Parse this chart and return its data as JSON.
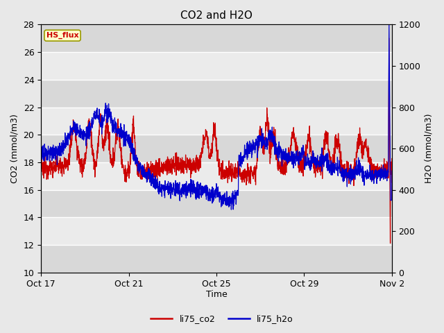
{
  "title": "CO2 and H2O",
  "xlabel": "Time",
  "ylabel_left": "CO2 (mmol/m3)",
  "ylabel_right": "H2O (mmol/m3)",
  "ylim_left": [
    10,
    28
  ],
  "ylim_right": [
    0,
    1200
  ],
  "yticks_left": [
    10,
    12,
    14,
    16,
    18,
    20,
    22,
    24,
    26,
    28
  ],
  "yticks_right": [
    0,
    200,
    400,
    600,
    800,
    1000,
    1200
  ],
  "xtick_labels": [
    "Oct 17",
    "Oct 21",
    "Oct 25",
    "Oct 29",
    "Nov 2"
  ],
  "xtick_positions": [
    0,
    4,
    8,
    12,
    16
  ],
  "xlim": [
    0,
    16
  ],
  "color_co2": "#cc0000",
  "color_h2o": "#0000cc",
  "legend_label_co2": "li75_co2",
  "legend_label_h2o": "li75_h2o",
  "tag_text": "HS_flux",
  "tag_bg": "#ffffcc",
  "tag_border": "#999900",
  "tag_text_color": "#cc0000",
  "fig_bg_color": "#e8e8e8",
  "plot_bg_color": "#f0f0f0",
  "band_light": "#ebebeb",
  "band_dark": "#d8d8d8",
  "grid_color": "#ffffff",
  "title_fontsize": 11,
  "axis_fontsize": 9,
  "tick_fontsize": 9,
  "linewidth_co2": 0.9,
  "linewidth_h2o": 0.9
}
